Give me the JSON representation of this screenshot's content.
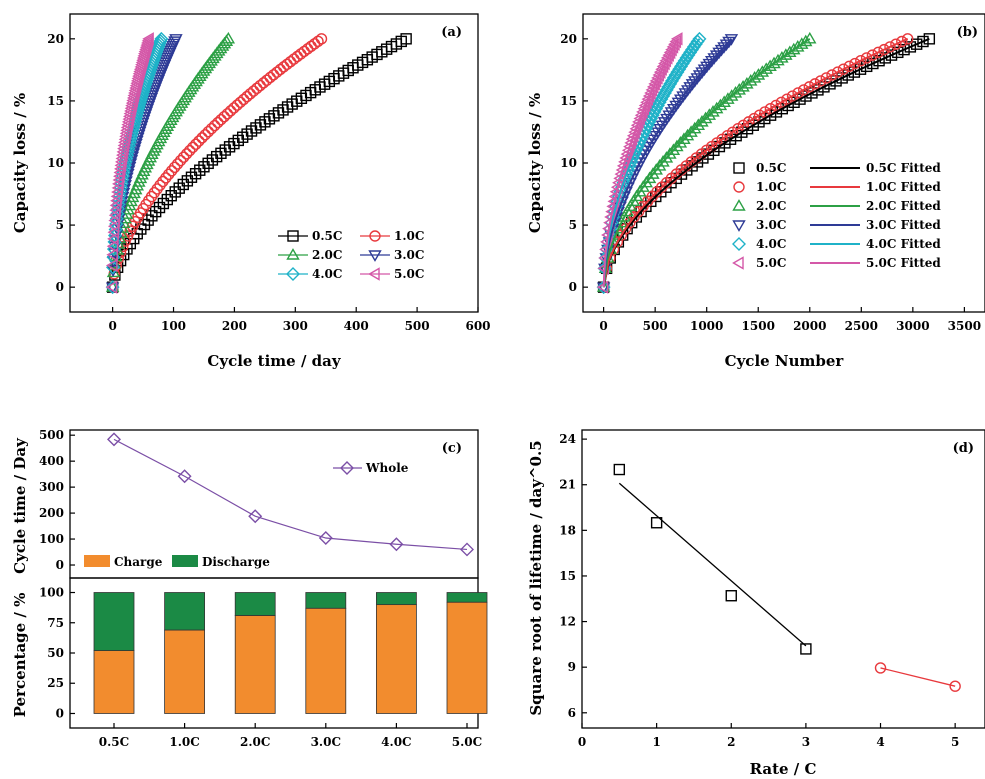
{
  "chart_data": [
    {
      "id": "a",
      "type": "scatter",
      "panel_label": "(a)",
      "xlabel": "Cycle time / day",
      "ylabel": "Capacity loss / %",
      "xlim": [
        -70,
        600
      ],
      "ylim": [
        -2,
        22
      ],
      "xticks": [
        "0",
        "100",
        "200",
        "300",
        "400",
        "500",
        "600"
      ],
      "yticks": [
        "0",
        "5",
        "10",
        "15",
        "20"
      ],
      "legend_position": "bottom-right",
      "series": [
        {
          "name": "0.5C",
          "color": "#000000",
          "marker": "square",
          "end_x": 482,
          "end_y": 20,
          "shape": 0.62
        },
        {
          "name": "1.0C",
          "color": "#e8393d",
          "marker": "circle",
          "end_x": 343,
          "end_y": 20,
          "shape": 0.6
        },
        {
          "name": "2.0C",
          "color": "#2ca045",
          "marker": "triangle-up",
          "end_x": 190,
          "end_y": 20,
          "shape": 0.58
        },
        {
          "name": "3.0C",
          "color": "#2e3b96",
          "marker": "triangle-down",
          "end_x": 104,
          "end_y": 20,
          "shape": 0.55
        },
        {
          "name": "4.0C",
          "color": "#1fb2c8",
          "marker": "diamond",
          "end_x": 80,
          "end_y": 20,
          "shape": 0.52
        },
        {
          "name": "5.0C",
          "color": "#d458a8",
          "marker": "triangle-left",
          "end_x": 60,
          "end_y": 20,
          "shape": 0.5
        }
      ]
    },
    {
      "id": "b",
      "type": "scatter",
      "panel_label": "(b)",
      "xlabel": "Cycle Number",
      "ylabel": "Capacity loss / %",
      "xlim": [
        -200,
        3700
      ],
      "ylim": [
        -2,
        22
      ],
      "xticks": [
        "0",
        "500",
        "1000",
        "1500",
        "2000",
        "2500",
        "3000",
        "3500"
      ],
      "yticks": [
        "0",
        "5",
        "10",
        "15",
        "20"
      ],
      "legend_position": "right",
      "series": [
        {
          "name": "0.5C",
          "fit_name": "0.5C Fitted",
          "color": "#000000",
          "marker": "square",
          "end_x": 3160,
          "end_y": 20,
          "shape": 0.55
        },
        {
          "name": "1.0C",
          "fit_name": "1.0C Fitted",
          "color": "#e8393d",
          "marker": "circle",
          "end_x": 2950,
          "end_y": 20,
          "shape": 0.55
        },
        {
          "name": "2.0C",
          "fit_name": "2.0C Fitted",
          "color": "#2ca045",
          "marker": "triangle-up",
          "end_x": 2000,
          "end_y": 20,
          "shape": 0.55
        },
        {
          "name": "3.0C",
          "fit_name": "3.0C Fitted",
          "color": "#2e3b96",
          "marker": "triangle-down",
          "end_x": 1240,
          "end_y": 20,
          "shape": 0.55
        },
        {
          "name": "4.0C",
          "fit_name": "4.0C Fitted",
          "color": "#1fb2c8",
          "marker": "diamond",
          "end_x": 930,
          "end_y": 20,
          "shape": 0.55
        },
        {
          "name": "5.0C",
          "fit_name": "5.0C Fitted",
          "color": "#d458a8",
          "marker": "triangle-left",
          "end_x": 720,
          "end_y": 20,
          "shape": 0.55
        }
      ]
    },
    {
      "id": "c-top",
      "type": "line",
      "panel_label": "(c)",
      "ylabel": "Cycle time / Day",
      "ylim": [
        -50,
        520
      ],
      "yticks": [
        "0",
        "100",
        "200",
        "300",
        "400",
        "500"
      ],
      "categories": [
        "0.5C",
        "1.0C",
        "2.0C",
        "3.0C",
        "4.0C",
        "5.0C"
      ],
      "series": [
        {
          "name": "Whole",
          "color": "#7b4fa6",
          "marker": "diamond",
          "values": [
            484,
            342,
            188,
            104,
            80,
            60
          ]
        }
      ]
    },
    {
      "id": "c-bottom",
      "type": "bar",
      "ylabel": "Percentage / %",
      "ylim": [
        -12,
        112
      ],
      "yticks": [
        "0",
        "25",
        "50",
        "75",
        "100"
      ],
      "categories": [
        "0.5C",
        "1.0C",
        "2.0C",
        "3.0C",
        "4.0C",
        "5.0C"
      ],
      "stacked": true,
      "series": [
        {
          "name": "Charge",
          "color": "#f28c2e",
          "values": [
            52,
            69,
            81,
            87,
            90,
            92
          ]
        },
        {
          "name": "Discharge",
          "color": "#1b8a45",
          "values": [
            48,
            31,
            19,
            13,
            10,
            8
          ]
        }
      ]
    },
    {
      "id": "d",
      "type": "scatter",
      "panel_label": "(d)",
      "xlabel": "Rate / C",
      "ylabel": "Square root of lifetime / day^0.5",
      "xlim": [
        0,
        5.4
      ],
      "ylim": [
        5,
        24.6
      ],
      "xticks": [
        "0",
        "1",
        "2",
        "3",
        "4",
        "5"
      ],
      "yticks": [
        "6",
        "9",
        "12",
        "15",
        "18",
        "21",
        "24"
      ],
      "series": [
        {
          "color": "#000000",
          "marker": "square",
          "x": [
            0.5,
            1,
            2,
            3
          ],
          "y": [
            22.0,
            18.5,
            13.7,
            10.2
          ],
          "fit": [
            [
              0.5,
              21.1
            ],
            [
              3,
              10.4
            ]
          ]
        },
        {
          "color": "#e8393d",
          "marker": "circle",
          "x": [
            4,
            5
          ],
          "y": [
            8.95,
            7.75
          ],
          "fit": [
            [
              4,
              8.95
            ],
            [
              5,
              7.75
            ]
          ]
        }
      ]
    }
  ]
}
